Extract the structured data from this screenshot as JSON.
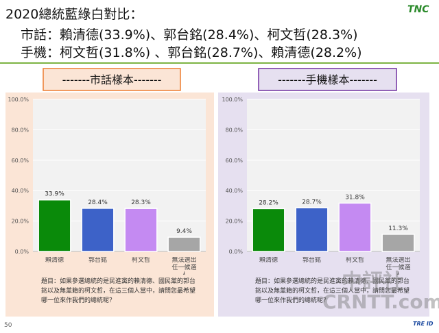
{
  "title": "2020總統藍綠白對比：",
  "lines": [
    "市話：賴清德(33.9%)、郭台銘(28.4%)、柯文哲(28.3%)",
    "手機：柯文哲(31.8%) 、郭台銘(28.7%)、賴清德(28.2%)"
  ],
  "logo": "TNC",
  "page_number": "50",
  "footer_logo": "TRE ID",
  "watermark": [
    "中評社",
    "CRNTT.com"
  ],
  "chart_data": [
    {
      "type": "bar",
      "title": "-------市話樣本-------",
      "categories": [
        "賴清德",
        "郭台銘",
        "柯文哲",
        "無法選出 任一候選人"
      ],
      "values": [
        33.9,
        28.4,
        28.3,
        9.4
      ],
      "value_labels": [
        "33.9%",
        "28.4%",
        "28.3%",
        "9.4%"
      ],
      "colors": [
        "#0a8a0a",
        "#3d62c8",
        "#c48af2",
        "#a6a6a6"
      ],
      "ylim": [
        0,
        100
      ],
      "yticks": [
        {
          "value": 0,
          "label": "0.0%"
        },
        {
          "value": 20,
          "label": "20.0%"
        },
        {
          "value": 40,
          "label": "40.0%"
        },
        {
          "value": 60,
          "label": "60.0%"
        },
        {
          "value": 80,
          "label": "80.0%"
        },
        {
          "value": 100,
          "label": "100.0%"
        }
      ],
      "grid": true,
      "note": "題目：如果參選總統的是民進黨的賴清德、國民黨的郭台銘以及無黨籍的柯文哲，在這三個人當中，請問您最希望哪一位來作我們的總統呢？"
    },
    {
      "type": "bar",
      "title": "-------手機樣本-------",
      "categories": [
        "賴清德",
        "郭台銘",
        "柯文哲",
        "無法選出 任一候選人"
      ],
      "values": [
        28.2,
        28.7,
        31.8,
        11.3
      ],
      "value_labels": [
        "28.2%",
        "28.7%",
        "31.8%",
        "11.3%"
      ],
      "colors": [
        "#0a8a0a",
        "#3d62c8",
        "#c48af2",
        "#a6a6a6"
      ],
      "ylim": [
        0,
        100
      ],
      "yticks": [
        {
          "value": 0,
          "label": "0.0%"
        },
        {
          "value": 20,
          "label": "20.0%"
        },
        {
          "value": 40,
          "label": "40.0%"
        },
        {
          "value": 60,
          "label": "60.0%"
        },
        {
          "value": 80,
          "label": "80.0%"
        },
        {
          "value": 100,
          "label": "100.0%"
        }
      ],
      "grid": true,
      "note": "題目：如果參選總統的是民進黨的賴清德、國民黨的郭台銘以及無黨籍的柯文哲，在這三個人當中，請問您最希望哪一位來作我們的總統呢？"
    }
  ]
}
